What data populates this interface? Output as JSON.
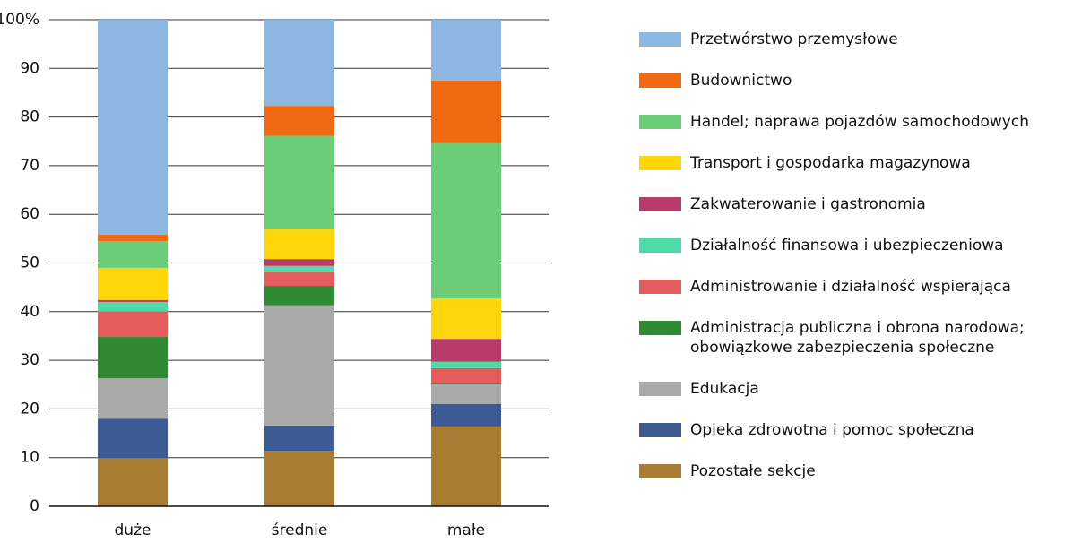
{
  "chart_data": {
    "type": "stacked_bar",
    "categories": [
      "duże",
      "średnie",
      "małe"
    ],
    "series": [
      {
        "name": "Przetwórstwo przemysłowe",
        "color": "#8db7e3",
        "values": [
          44.2,
          17.7,
          12.5
        ]
      },
      {
        "name": "Budownictwo",
        "color": "#ef6a12",
        "values": [
          1.3,
          6.2,
          12.9
        ]
      },
      {
        "name": "Handel; naprawa pojazdów samochodowych",
        "color": "#6bcd78",
        "values": [
          5.5,
          19.2,
          31.9
        ]
      },
      {
        "name": "Transport i gospodarka magazynowa",
        "color": "#ffd60a",
        "values": [
          6.6,
          6.1,
          8.3
        ]
      },
      {
        "name": "Zakwaterowanie i gastronomia",
        "color": "#b83c6b",
        "values": [
          0.4,
          1.4,
          4.7
        ]
      },
      {
        "name": "Działalność finansowa i ubezpieczeniowa",
        "color": "#4ddba7",
        "values": [
          2.0,
          1.3,
          1.3
        ]
      },
      {
        "name": "Administrowanie i działalność wspierająca",
        "color": "#e55c5c",
        "values": [
          5.2,
          2.8,
          3.0
        ]
      },
      {
        "name": "Administracja publiczna i obrona narodowa; obowiązkowe zabezpieczenia społeczne",
        "color": "#2f8a33",
        "values": [
          8.5,
          4.0,
          0.2
        ]
      },
      {
        "name": "Edukacja",
        "color": "#aaaaaa",
        "values": [
          8.3,
          24.7,
          4.2
        ]
      },
      {
        "name": "Opieka zdrowotna i pomoc społeczna",
        "color": "#3d5a94",
        "values": [
          8.1,
          5.2,
          4.6
        ]
      },
      {
        "name": "Pozostałe sekcje",
        "color": "#a87d33",
        "values": [
          9.9,
          11.4,
          16.4
        ]
      }
    ],
    "ylim": [
      0,
      100
    ],
    "yticks": [
      0,
      10,
      20,
      30,
      40,
      50,
      60,
      70,
      80,
      90,
      {
        "value": 100,
        "label": "100%"
      }
    ],
    "grid": true,
    "legend": "right"
  }
}
